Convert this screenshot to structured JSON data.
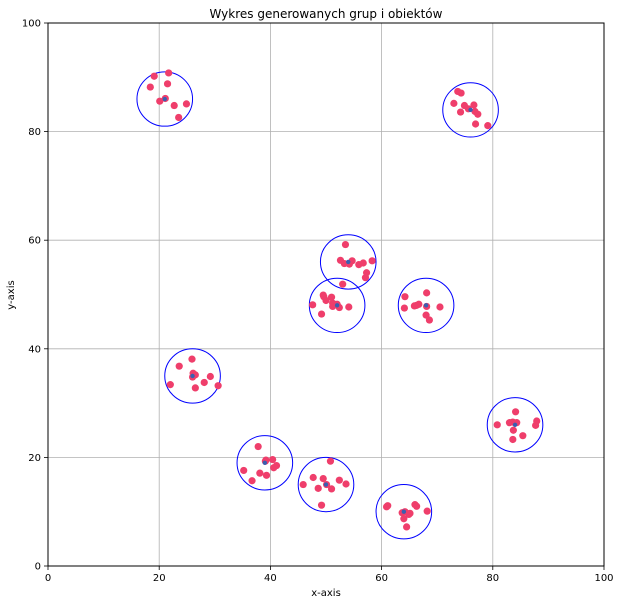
{
  "chart_data": {
    "type": "scatter",
    "title": "Wykres generowanych grup i obiektów",
    "xlabel": "x-axis",
    "ylabel": "y-axis",
    "xlim": [
      0,
      100
    ],
    "ylim": [
      0,
      100
    ],
    "xticks": [
      0,
      20,
      40,
      60,
      80,
      100
    ],
    "yticks": [
      0,
      20,
      40,
      60,
      80,
      100
    ],
    "grid": true,
    "colors": {
      "points": "#ef3e6b",
      "centers": "#3a5fb0",
      "circles": "#0000ff",
      "grid": "#b0b0b0"
    },
    "groups": [
      {
        "center": [
          21,
          86
        ],
        "radius": 5,
        "points": [
          [
            18.4,
            88.2
          ],
          [
            19.1,
            90.2
          ],
          [
            20.1,
            85.6
          ],
          [
            21.7,
            90.8
          ],
          [
            21.5,
            88.8
          ],
          [
            21.1,
            86.1
          ],
          [
            22.7,
            84.8
          ],
          [
            23.5,
            82.6
          ],
          [
            24.9,
            85.1
          ]
        ]
      },
      {
        "center": [
          76,
          84
        ],
        "radius": 5,
        "points": [
          [
            73.0,
            85.2
          ],
          [
            73.7,
            87.4
          ],
          [
            74.2,
            83.6
          ],
          [
            75.6,
            84.2
          ],
          [
            76.6,
            84.9
          ],
          [
            76.8,
            83.7
          ],
          [
            77.3,
            83.2
          ],
          [
            76.9,
            81.4
          ],
          [
            79.1,
            81.1
          ],
          [
            74.3,
            87.1
          ],
          [
            74.9,
            84.8
          ]
        ]
      },
      {
        "center": [
          54,
          56
        ],
        "radius": 5,
        "points": [
          [
            53.5,
            59.2
          ],
          [
            52.6,
            56.3
          ],
          [
            53.3,
            55.7
          ],
          [
            54.7,
            56.2
          ],
          [
            55.9,
            55.5
          ],
          [
            56.7,
            55.8
          ],
          [
            57.3,
            54.0
          ],
          [
            57.1,
            53.1
          ],
          [
            58.3,
            56.2
          ],
          [
            54.2,
            55.6
          ]
        ]
      },
      {
        "center": [
          52,
          48
        ],
        "radius": 5,
        "points": [
          [
            47.6,
            48.1
          ],
          [
            49.2,
            46.4
          ],
          [
            49.6,
            49.6
          ],
          [
            50.0,
            48.9
          ],
          [
            51.2,
            48.4
          ],
          [
            51.2,
            47.8
          ],
          [
            52.0,
            48.2
          ],
          [
            52.4,
            47.6
          ],
          [
            53.0,
            51.9
          ],
          [
            54.1,
            47.7
          ],
          [
            49.5,
            49.9
          ],
          [
            51.0,
            49.5
          ]
        ]
      },
      {
        "center": [
          68,
          48
        ],
        "radius": 5,
        "points": [
          [
            64.2,
            49.6
          ],
          [
            64.1,
            47.5
          ],
          [
            65.9,
            47.9
          ],
          [
            66.3,
            48.0
          ],
          [
            66.7,
            48.2
          ],
          [
            68.1,
            50.3
          ],
          [
            68.1,
            47.8
          ],
          [
            68.0,
            46.2
          ],
          [
            68.6,
            45.3
          ],
          [
            70.5,
            47.7
          ]
        ]
      },
      {
        "center": [
          26,
          35
        ],
        "radius": 5,
        "points": [
          [
            22.0,
            33.4
          ],
          [
            23.6,
            36.8
          ],
          [
            25.9,
            38.1
          ],
          [
            26.0,
            34.8
          ],
          [
            26.1,
            35.5
          ],
          [
            26.5,
            32.8
          ],
          [
            28.1,
            33.8
          ],
          [
            29.2,
            34.9
          ],
          [
            30.6,
            33.2
          ],
          [
            26.5,
            35.2
          ]
        ]
      },
      {
        "center": [
          84,
          26
        ],
        "radius": 5,
        "points": [
          [
            80.8,
            26.0
          ],
          [
            83.0,
            26.4
          ],
          [
            83.6,
            26.5
          ],
          [
            83.7,
            25.0
          ],
          [
            84.1,
            28.4
          ],
          [
            84.3,
            26.4
          ],
          [
            85.4,
            24.0
          ],
          [
            87.9,
            26.7
          ],
          [
            87.7,
            25.9
          ],
          [
            83.6,
            23.3
          ]
        ]
      },
      {
        "center": [
          39,
          19
        ],
        "radius": 5,
        "points": [
          [
            35.2,
            17.6
          ],
          [
            36.7,
            15.7
          ],
          [
            37.8,
            22.0
          ],
          [
            38.1,
            17.1
          ],
          [
            39.1,
            19.3
          ],
          [
            39.3,
            16.7
          ],
          [
            40.4,
            19.6
          ],
          [
            40.6,
            18.1
          ],
          [
            41.1,
            18.5
          ],
          [
            39.2,
            19.5
          ]
        ]
      },
      {
        "center": [
          50,
          15
        ],
        "radius": 5,
        "points": [
          [
            45.9,
            15.0
          ],
          [
            47.7,
            16.3
          ],
          [
            48.6,
            14.3
          ],
          [
            49.2,
            11.2
          ],
          [
            49.5,
            16.1
          ],
          [
            50.1,
            15.0
          ],
          [
            50.8,
            19.3
          ],
          [
            51.0,
            14.2
          ],
          [
            52.4,
            15.8
          ],
          [
            53.6,
            15.1
          ]
        ]
      },
      {
        "center": [
          64,
          10
        ],
        "radius": 5,
        "points": [
          [
            61.1,
            11.1
          ],
          [
            60.9,
            10.9
          ],
          [
            63.7,
            9.8
          ],
          [
            64.0,
            8.7
          ],
          [
            64.2,
            10.0
          ],
          [
            64.5,
            7.2
          ],
          [
            64.9,
            9.5
          ],
          [
            65.1,
            9.7
          ],
          [
            66.0,
            11.3
          ],
          [
            66.3,
            11.0
          ],
          [
            68.2,
            10.1
          ]
        ]
      }
    ]
  }
}
